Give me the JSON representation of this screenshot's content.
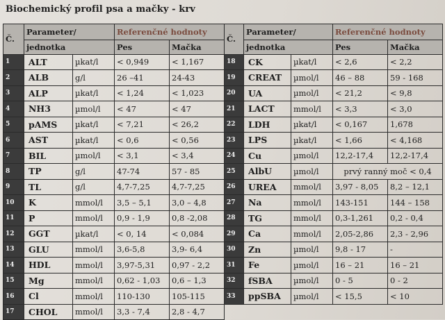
{
  "title": "Biochemický profil psa a mačky - krv",
  "headers": {
    "num": "Č.",
    "param": "Parameter/",
    "unit": "jednotka",
    "ref": "Referenčné hodnoty",
    "dog": "Pes",
    "cat": "Mačka"
  },
  "left_rows": [
    {
      "n": "1",
      "param": "ALT",
      "unit": "µkat/l",
      "dog": "< 0,949",
      "cat": "< 1,167"
    },
    {
      "n": "2",
      "param": "ALB",
      "unit": "g/l",
      "dog": "26 –41",
      "cat": "24-43"
    },
    {
      "n": "3",
      "param": "ALP",
      "unit": "µkat/l",
      "dog": "< 1,24",
      "cat": "< 1,023"
    },
    {
      "n": "4",
      "param": "NH3",
      "unit": "µmol/l",
      "dog": "< 47",
      "cat": "< 47"
    },
    {
      "n": "5",
      "param": "pAMS",
      "unit": "µkat/l",
      "dog": "< 7,21",
      "cat": "< 26,2"
    },
    {
      "n": "6",
      "param": "AST",
      "unit": "µkat/l",
      "dog": "< 0,6",
      "cat": "< 0,56"
    },
    {
      "n": "7",
      "param": "BIL",
      "unit": "µmol/l",
      "dog": "< 3,1",
      "cat": "< 3,4"
    },
    {
      "n": "8",
      "param": "TP",
      "unit": "g/l",
      "dog": "47-74",
      "cat": "57 - 85"
    },
    {
      "n": "9",
      "param": "TL",
      "unit": "g/l",
      "dog": "4,7-7,25",
      "cat": "4,7-7,25"
    },
    {
      "n": "10",
      "param": "K",
      "unit": "mmol/l",
      "dog": "3,5 – 5,1",
      "cat": "3,0 – 4,8"
    },
    {
      "n": "11",
      "param": "P",
      "unit": "mmol/l",
      "dog": "0,9 - 1,9",
      "cat": "0,8 -2,08"
    },
    {
      "n": "12",
      "param": "GGT",
      "unit": "µkat/l",
      "dog": "< 0, 14",
      "cat": "< 0,084"
    },
    {
      "n": "13",
      "param": "GLU",
      "unit": "mmol/l",
      "dog": "3,6-5,8",
      "cat": "3,9- 6,4"
    },
    {
      "n": "14",
      "param": "HDL",
      "unit": "mmol/l",
      "dog": "3,97-5,31",
      "cat": "0,97 - 2,2"
    },
    {
      "n": "15",
      "param": "Mg",
      "unit": "mmol/l",
      "dog": "0,62 - 1,03",
      "cat": "0,6 – 1,3"
    },
    {
      "n": "16",
      "param": "Cl",
      "unit": "mmol/l",
      "dog": "110-130",
      "cat": "105-115"
    },
    {
      "n": "17",
      "param": "CHOL",
      "unit": "mmol/l",
      "dog": "3,3 - 7,4",
      "cat": "2,8 - 4,7"
    }
  ],
  "right_rows": [
    {
      "n": "18",
      "param": "CK",
      "unit": "µkat/l",
      "dog": "< 2,6",
      "cat": "< 2,2"
    },
    {
      "n": "19",
      "param": "CREAT",
      "unit": "µmol/l",
      "dog": "46 – 88",
      "cat": "59 - 168"
    },
    {
      "n": "20",
      "param": "UA",
      "unit": "µmol/l",
      "dog": "< 21,2",
      "cat": "< 9,8"
    },
    {
      "n": "21",
      "param": "LACT",
      "unit": "mmol/l",
      "dog": "< 3,3",
      "cat": "< 3,0"
    },
    {
      "n": "22",
      "param": "LDH",
      "unit": "µkat/l",
      "dog": "< 0,167",
      "cat": "1,678"
    },
    {
      "n": "23",
      "param": "LPS",
      "unit": "µkat/l",
      "dog": "< 1,66",
      "cat": "< 4,168"
    },
    {
      "n": "24",
      "param": "Cu",
      "unit": "µmol/l",
      "dog": "12,2-17,4",
      "cat": "12,2-17,4"
    },
    {
      "n": "25",
      "param": "AlbU",
      "unit": "µmol/l",
      "span": "prvý ranný moč  < 0,4"
    },
    {
      "n": "26",
      "param": "UREA",
      "unit": "mmol/l",
      "dog": "3,97 - 8,05",
      "cat": "8,2 – 12,1"
    },
    {
      "n": "27",
      "param": "Na",
      "unit": "mmol/l",
      "dog": "143-151",
      "cat": "144 – 158"
    },
    {
      "n": "28",
      "param": "TG",
      "unit": "mmol/l",
      "dog": "0,3-1,261",
      "cat": "0,2 - 0,4"
    },
    {
      "n": "29",
      "param": "Ca",
      "unit": "mmol/l",
      "dog": "2,05-2,86",
      "cat": "2,3 - 2,96"
    },
    {
      "n": "30",
      "param": "Zn",
      "unit": "µmol/l",
      "dog": "9,8 - 17",
      "cat": "-"
    },
    {
      "n": "31",
      "param": "Fe",
      "unit": "µmol/l",
      "dog": "16 – 21",
      "cat": "16 – 21"
    },
    {
      "n": "32",
      "param": "fSBA",
      "unit": "µmol/l",
      "dog": "0 - 5",
      "cat": "0 - 2"
    },
    {
      "n": "33",
      "param": "ppSBA",
      "unit": "µmol/l",
      "dog": "< 15,5",
      "cat": "< 10"
    }
  ]
}
